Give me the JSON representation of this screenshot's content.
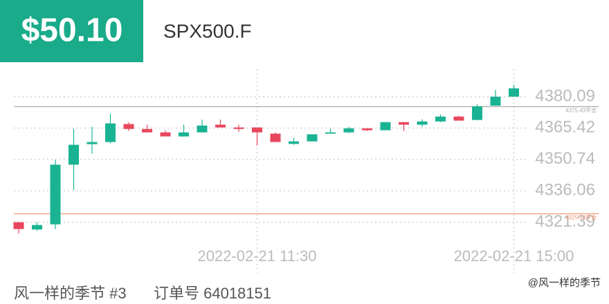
{
  "header": {
    "price": "$50.10",
    "symbol": "SPX500.F"
  },
  "footer": {
    "user": "风一样的季节 #3",
    "order": "订单号 64018151",
    "watermark": "@风一样的季节"
  },
  "chart_data": {
    "type": "candlestick",
    "categories": [
      null,
      null,
      null,
      null,
      null,
      null,
      null,
      null,
      null,
      null,
      null,
      null,
      null,
      "2022-02-21 11:30",
      null,
      null,
      null,
      null,
      null,
      null,
      null,
      null,
      null,
      null,
      null,
      null,
      null,
      "2022-02-21 15:00"
    ],
    "open": [
      4321.4,
      4318.0,
      4320.4,
      4348.3,
      4357.9,
      4358.9,
      4367.3,
      4365.0,
      4363.4,
      4361.5,
      4363.4,
      4367.0,
      4365.7,
      4365.7,
      4362.8,
      4358.0,
      4359.2,
      4362.8,
      4363.4,
      4365.3,
      4364.4,
      4368.2,
      4367.0,
      4368.5,
      4370.8,
      4369.2,
      4375.9,
      4380.1
    ],
    "close": [
      4318.2,
      4320.1,
      4348.3,
      4357.6,
      4358.9,
      4367.6,
      4365.0,
      4363.4,
      4361.5,
      4363.4,
      4366.6,
      4365.7,
      4365.0,
      4363.4,
      4358.9,
      4359.2,
      4362.5,
      4363.4,
      4365.3,
      4364.4,
      4368.2,
      4367.0,
      4368.5,
      4370.8,
      4368.9,
      4375.6,
      4380.1,
      4384.0
    ],
    "high": [
      4321.4,
      4321.4,
      4350.7,
      4365.0,
      4366.0,
      4372.1,
      4368.2,
      4367.0,
      4364.4,
      4367.0,
      4369.4,
      4369.4,
      4367.0,
      4365.7,
      4363.4,
      4360.8,
      4362.5,
      4365.0,
      4366.0,
      4365.3,
      4368.2,
      4368.2,
      4369.5,
      4371.8,
      4371.2,
      4376.6,
      4383.3,
      4385.6
    ],
    "low": [
      4316.0,
      4317.3,
      4318.2,
      4336.5,
      4353.5,
      4358.3,
      4364.0,
      4363.4,
      4361.5,
      4361.5,
      4363.4,
      4365.7,
      4363.7,
      4357.3,
      4358.9,
      4357.6,
      4359.2,
      4362.8,
      4363.1,
      4364.0,
      4364.4,
      4364.0,
      4366.0,
      4368.2,
      4368.9,
      4369.2,
      4375.9,
      4380.1
    ],
    "up_color": "#19b393",
    "down_color": "#e8475d",
    "ylim": [
      4309,
      4393
    ],
    "yticks": [
      4321.39,
      4336.06,
      4350.74,
      4365.42,
      4380.09
    ],
    "grid": true,
    "reference_lines": [
      {
        "value": 4375.43,
        "label": "4375.43平仓",
        "color": "#aaaaaa"
      },
      {
        "value": 4325.33,
        "label": "4325.33开仓",
        "color": "#f0906c"
      }
    ]
  }
}
